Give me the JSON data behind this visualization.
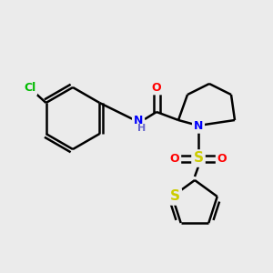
{
  "background_color": "#ebebeb",
  "bond_color": "#000000",
  "bond_width": 1.8,
  "atom_colors": {
    "Cl": "#00bb00",
    "N": "#0000ff",
    "O": "#ff0000",
    "S_sulfonyl": "#cccc00",
    "S_thiophene": "#cccc00",
    "H": "#6666cc"
  },
  "font_size": 9,
  "figsize": [
    3.0,
    3.0
  ],
  "dpi": 100
}
